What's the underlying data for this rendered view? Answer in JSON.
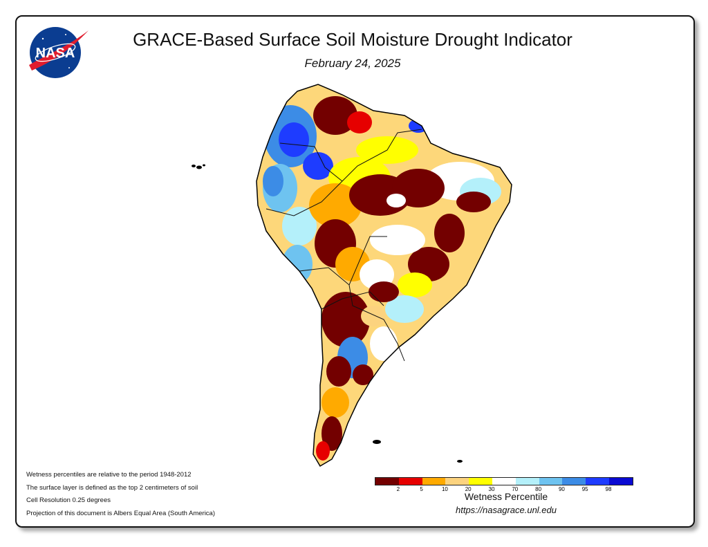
{
  "title": "GRACE-Based Surface Soil Moisture Drought Indicator",
  "date": "February 24, 2025",
  "logo": {
    "text": "NASA",
    "icon": "nasa-meatball-logo"
  },
  "notes": [
    "Wetness percentiles are relative to the period 1948-2012",
    "The surface layer is defined as the top 2 centimeters of soil",
    "Cell Resolution 0.25 degrees",
    "Projection of this document is Albers Equal Area (South America)"
  ],
  "legend": {
    "title": "Wetness Percentile",
    "colors": [
      "#730000",
      "#e60000",
      "#ffaa00",
      "#fcd37f",
      "#ffff00",
      "#ffffff",
      "#b4f0fa",
      "#6ec3f0",
      "#3c8ce6",
      "#1e3cff",
      "#0a0ad2"
    ],
    "ticks": [
      "2",
      "5",
      "10",
      "20",
      "30",
      "70",
      "80",
      "90",
      "95",
      "98"
    ]
  },
  "url": "https://nasagrace.unl.edu"
}
